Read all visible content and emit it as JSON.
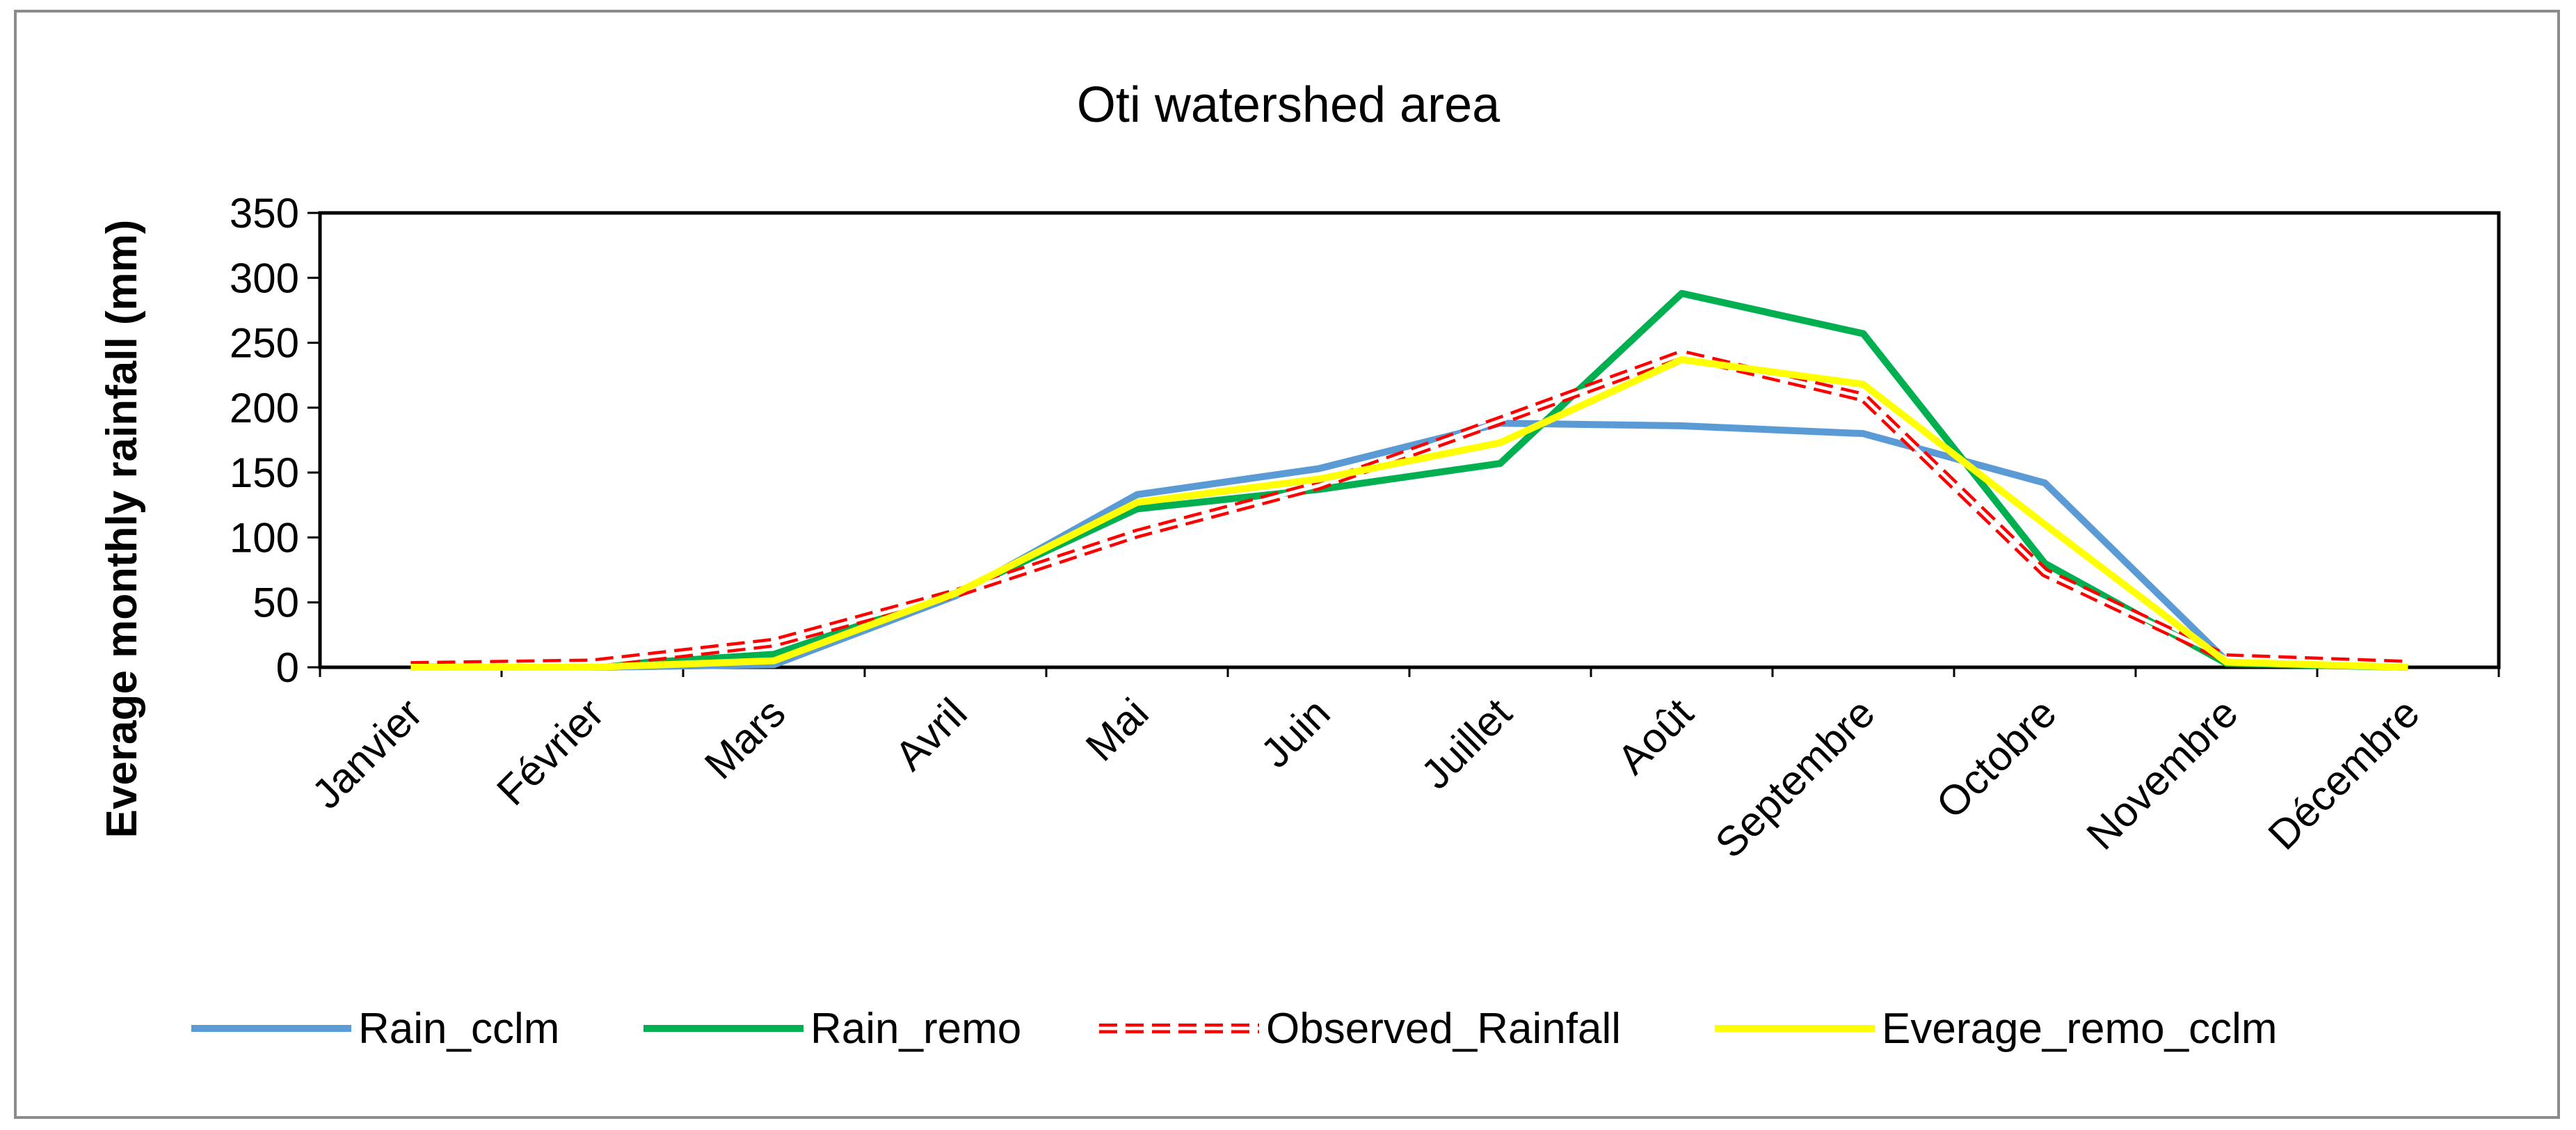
{
  "chart_data": {
    "type": "line",
    "title": "Oti watershed area",
    "xlabel": "",
    "ylabel": "Everage monthly rainfall (mm)",
    "ylim": [
      0,
      350
    ],
    "yticks": [
      0,
      50,
      100,
      150,
      200,
      250,
      300,
      350
    ],
    "grid": false,
    "legend_position": "bottom",
    "categories": [
      "Janvier",
      "Février",
      "Mars",
      "Avril",
      "Mai",
      "Juin",
      "Juillet",
      "Août",
      "Septembre",
      "Octobre",
      "Novembre",
      "Décembre"
    ],
    "series": [
      {
        "name": "Rain_cclm",
        "color": "#5b9bd5",
        "dash": "solid",
        "values": [
          0,
          0,
          2,
          55,
          133,
          153,
          188,
          186,
          180,
          142,
          5,
          0
        ]
      },
      {
        "name": "Rain_remo",
        "color": "#00b050",
        "dash": "solid",
        "values": [
          0,
          1,
          10,
          57,
          122,
          137,
          157,
          288,
          257,
          80,
          3,
          0
        ]
      },
      {
        "name": "Observed_Rainfall",
        "color": "#ff0000",
        "dash": "dashed-double",
        "values": [
          1,
          3,
          19,
          57,
          103,
          140,
          190,
          241,
          208,
          73,
          7,
          2
        ]
      },
      {
        "name": "Everage_remo_cclm",
        "color": "#ffff00",
        "dash": "solid",
        "values": [
          0,
          0,
          5,
          57,
          127,
          145,
          173,
          237,
          218,
          110,
          4,
          0
        ]
      }
    ]
  }
}
